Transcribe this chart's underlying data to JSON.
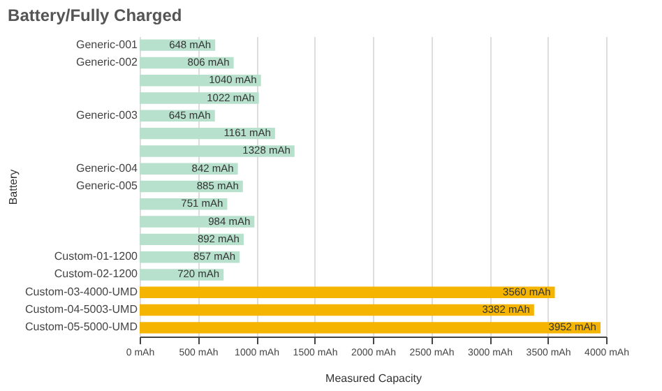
{
  "chart_data": {
    "type": "bar",
    "orientation": "horizontal",
    "title": "Battery/Fully Charged",
    "xlabel": "Measured Capacity",
    "ylabel": "Battery",
    "categories": [
      "Generic-001",
      "Generic-002",
      null,
      null,
      "Generic-003",
      null,
      null,
      "Generic-004",
      "Generic-005",
      null,
      null,
      null,
      "Custom-01-1200",
      "Custom-02-1200",
      "Custom-03-4000-UMD",
      "Custom-04-5003-UMD",
      "Custom-05-5000-UMD"
    ],
    "values": [
      648,
      806,
      1040,
      1022,
      645,
      1161,
      1328,
      842,
      885,
      751,
      984,
      892,
      857,
      720,
      3560,
      3382,
      3952
    ],
    "colors": [
      "#b7e1cd",
      "#b7e1cd",
      "#b7e1cd",
      "#b7e1cd",
      "#b7e1cd",
      "#b7e1cd",
      "#b7e1cd",
      "#b7e1cd",
      "#b7e1cd",
      "#b7e1cd",
      "#b7e1cd",
      "#b7e1cd",
      "#b7e1cd",
      "#b7e1cd",
      "#f4b400",
      "#f4b400",
      "#f4b400"
    ],
    "value_labels": [
      "648 mAh",
      "806 mAh",
      "1040 mAh",
      "1022 mAh",
      "645 mAh",
      "1161 mAh",
      "1328 mAh",
      "842 mAh",
      "885 mAh",
      "751 mAh",
      "984 mAh",
      "892 mAh",
      "857 mAh",
      "720 mAh",
      "3560 mAh",
      "3382 mAh",
      "3952 mAh"
    ],
    "xlim": [
      0,
      4000
    ],
    "xticks": [
      {
        "value": 0,
        "label": "0 mAh"
      },
      {
        "value": 500,
        "label": "500 mAh"
      },
      {
        "value": 1000,
        "label": "1000 mAh"
      },
      {
        "value": 1500,
        "label": "1500 mAh"
      },
      {
        "value": 2000,
        "label": "2000 mAh"
      },
      {
        "value": 2500,
        "label": "2500 mAh"
      },
      {
        "value": 3000,
        "label": "3000 mAh"
      },
      {
        "value": 3500,
        "label": "3500 mAh"
      },
      {
        "value": 4000,
        "label": "4000 mAh"
      }
    ],
    "grid": "x"
  }
}
